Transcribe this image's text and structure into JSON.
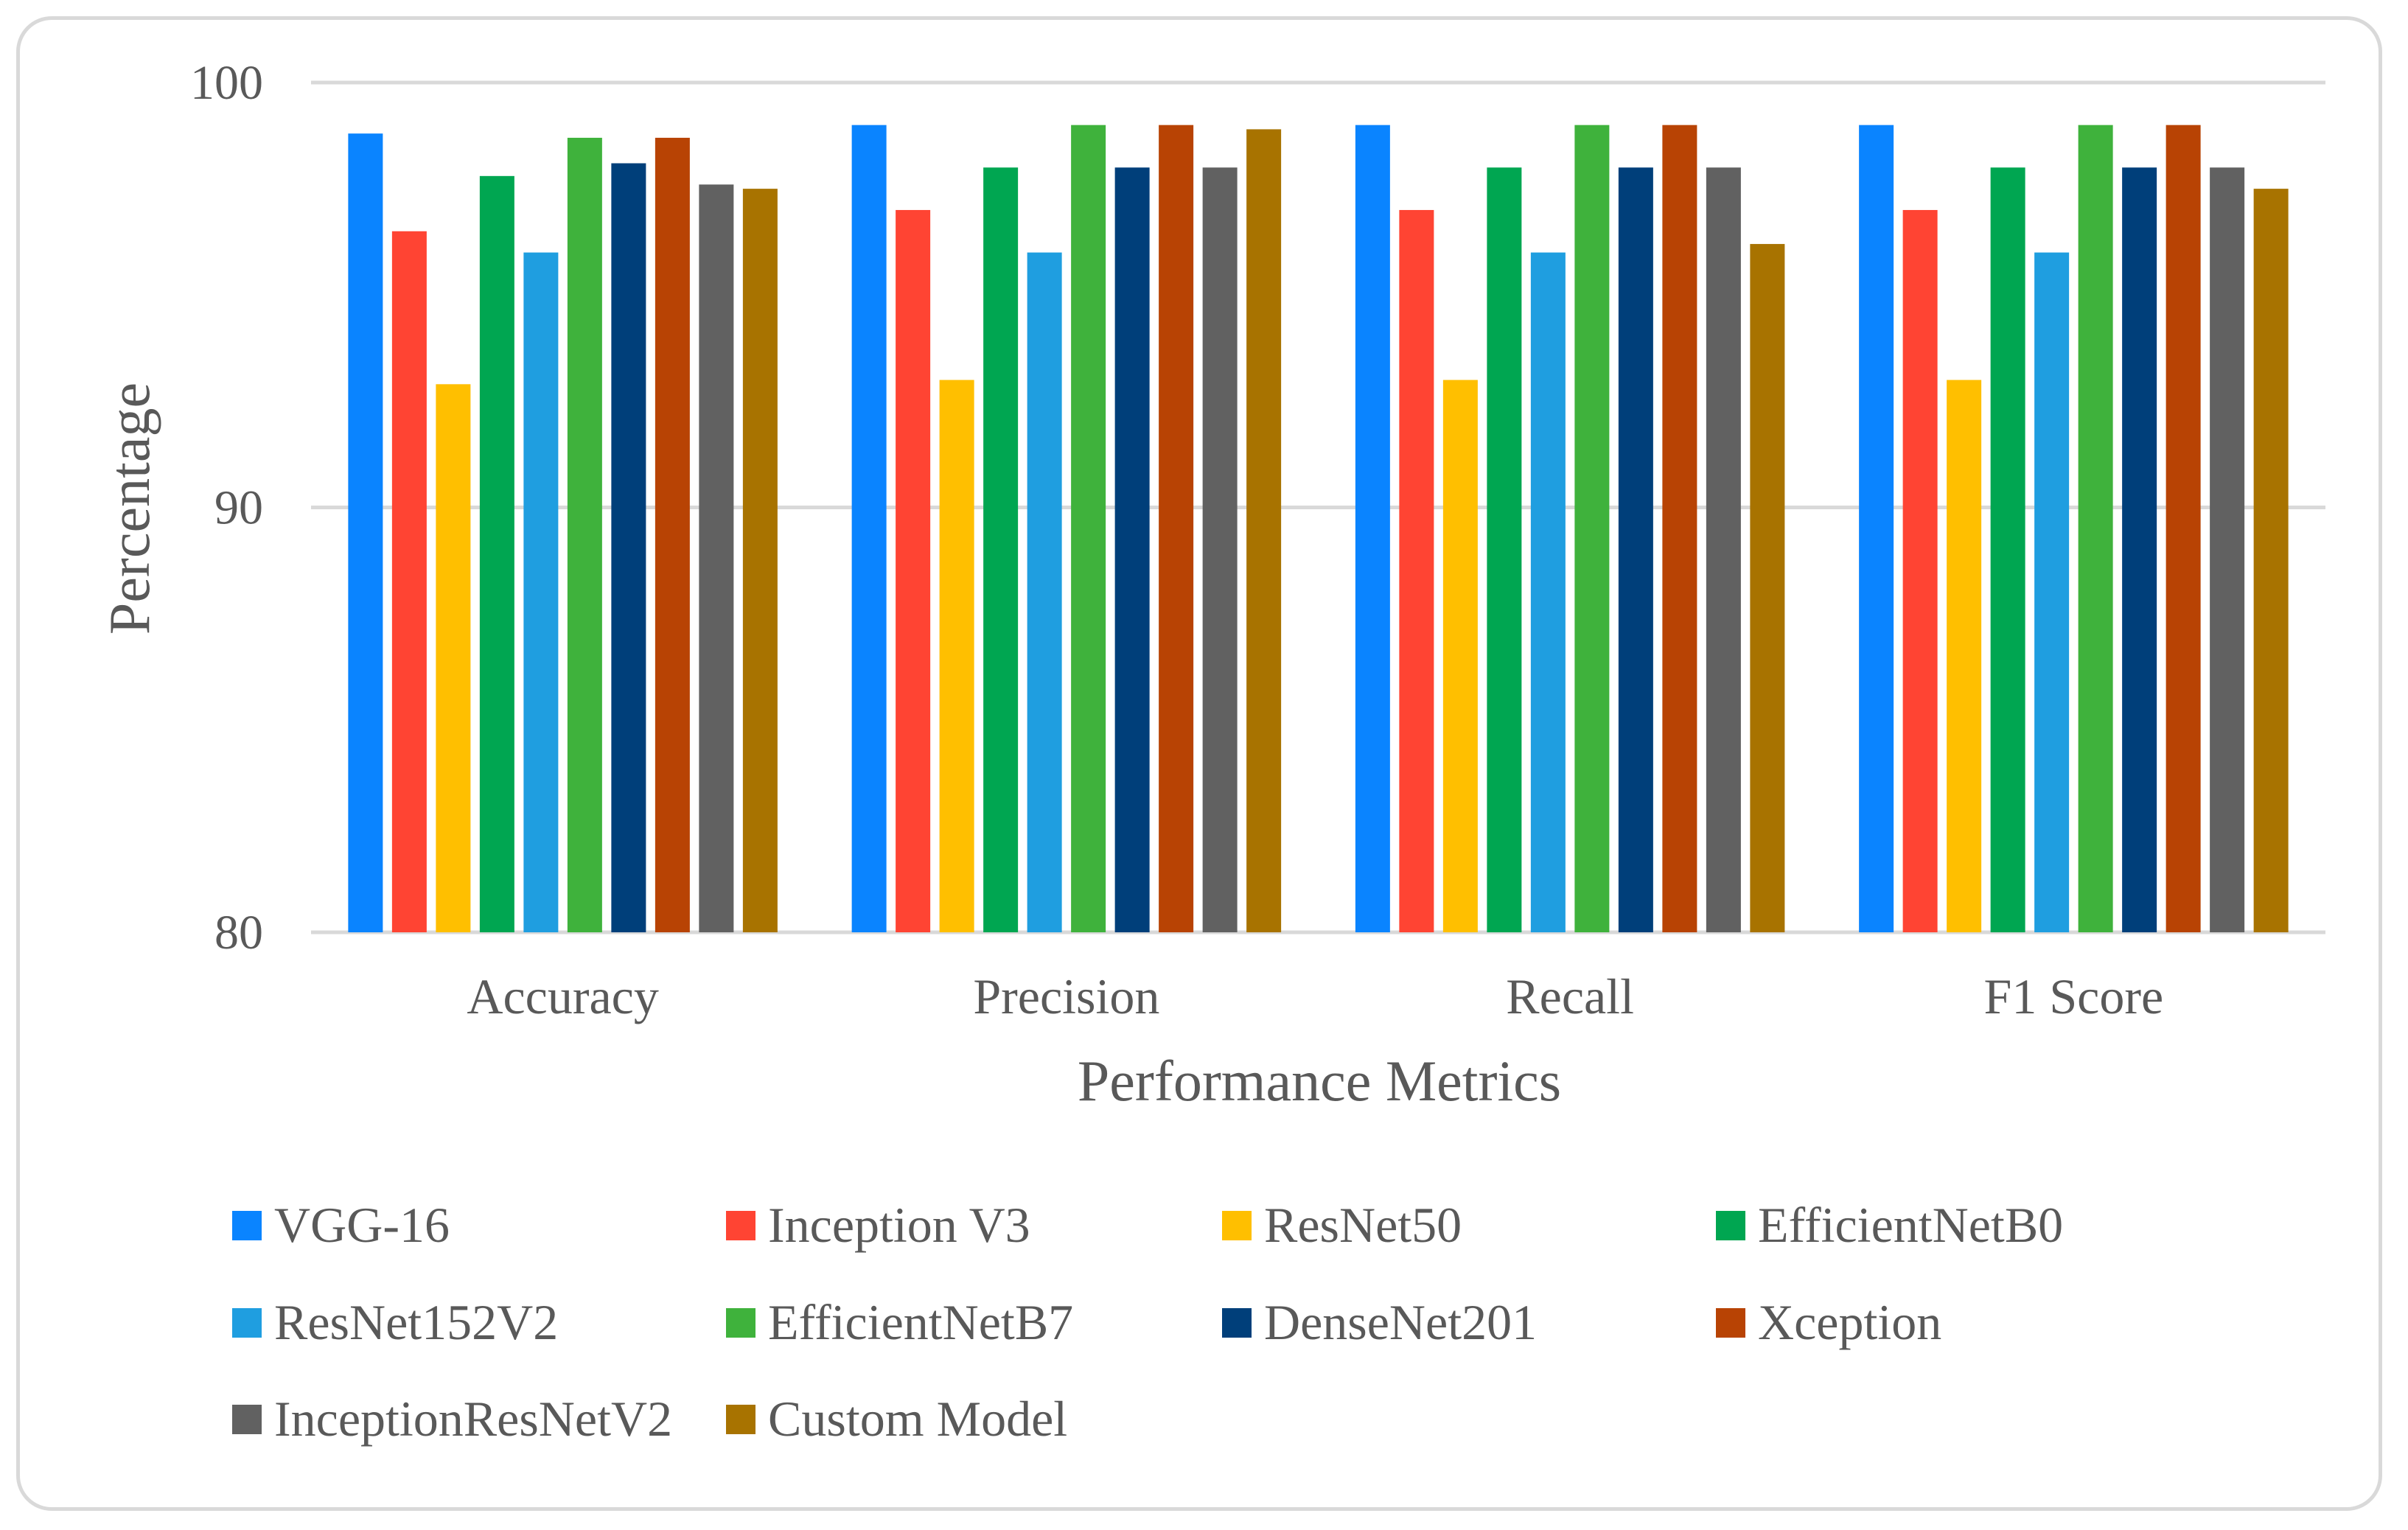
{
  "chart_data": {
    "type": "bar",
    "categories": [
      "Accuracy",
      "Precision",
      "Recall",
      "F1 Score"
    ],
    "xlabel": "Performance Metrics",
    "ylabel": "Percentage",
    "ylim": [
      80,
      100
    ],
    "yticks": [
      80,
      90,
      100
    ],
    "grid": true,
    "legend_position": "bottom",
    "series": [
      {
        "name": "VGG-16",
        "color": "#0a84ff",
        "values": [
          98.8,
          99.0,
          99.0,
          99.0
        ]
      },
      {
        "name": "Inception V3",
        "color": "#ff4433",
        "values": [
          96.5,
          97.0,
          97.0,
          97.0
        ]
      },
      {
        "name": "ResNet50",
        "color": "#ffbf00",
        "values": [
          92.9,
          93.0,
          93.0,
          93.0
        ]
      },
      {
        "name": "EfficientNetB0",
        "color": "#00a651",
        "values": [
          97.8,
          98.0,
          98.0,
          98.0
        ]
      },
      {
        "name": "ResNet152V2",
        "color": "#1f9ee0",
        "values": [
          96.0,
          96.0,
          96.0,
          96.0
        ]
      },
      {
        "name": "EfficientNetB7",
        "color": "#3fb23c",
        "values": [
          98.7,
          99.0,
          99.0,
          99.0
        ]
      },
      {
        "name": "DenseNet201",
        "color": "#003f7a",
        "values": [
          98.1,
          98.0,
          98.0,
          98.0
        ]
      },
      {
        "name": "Xception",
        "color": "#b84304",
        "values": [
          98.7,
          99.0,
          99.0,
          99.0
        ]
      },
      {
        "name": "InceptionResNetV2",
        "color": "#616161",
        "values": [
          97.6,
          98.0,
          98.0,
          98.0
        ]
      },
      {
        "name": "Custom Model",
        "color": "#a87300",
        "values": [
          97.5,
          98.9,
          96.2,
          97.5
        ]
      }
    ]
  }
}
